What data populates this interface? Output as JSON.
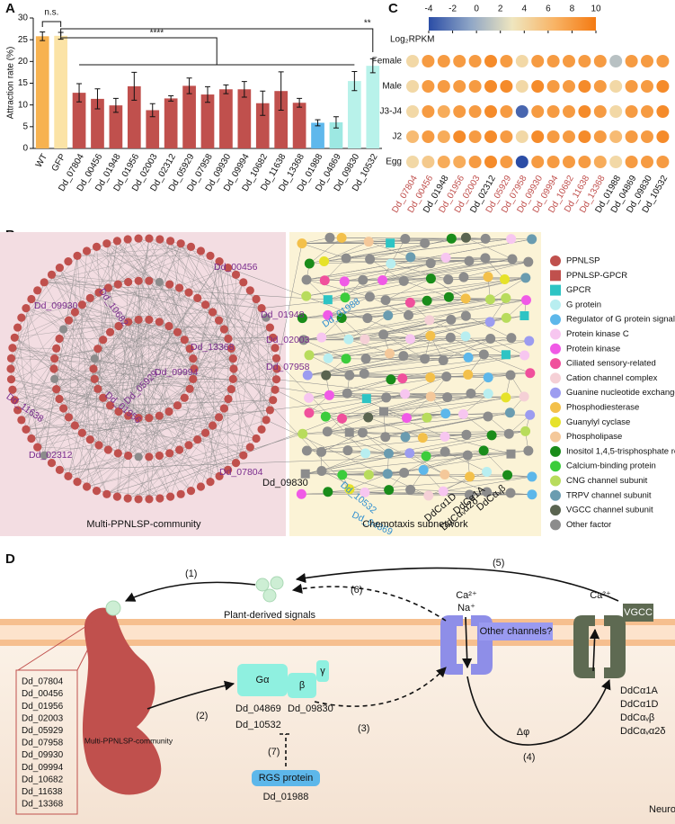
{
  "panel_labels": [
    "A",
    "B",
    "C",
    "D"
  ],
  "chart_data": [
    {
      "type": "bar",
      "y_label": "Attraction rate (%)",
      "categories": [
        "WT",
        "GFP",
        "Dd_07804",
        "Dd_00456",
        "Dd_01948",
        "Dd_01956",
        "Dd_02003",
        "Dd_02312",
        "Dd_05929",
        "Dd_07958",
        "Dd_09930",
        "Dd_09994",
        "Dd_10682",
        "Dd_11638",
        "Dd_13368",
        "Dd_01988",
        "Dd_04869",
        "Dd_09830",
        "Dd_10532"
      ],
      "values": [
        25.8,
        25.9,
        12.8,
        11.4,
        9.9,
        14.3,
        8.8,
        11.5,
        14.4,
        12.4,
        13.6,
        13.6,
        10.4,
        13.2,
        10.5,
        5.9,
        6.0,
        15.5,
        19.0
      ],
      "errors": [
        1.0,
        0.8,
        2.1,
        2.3,
        1.6,
        3.2,
        1.5,
        0.6,
        1.8,
        1.8,
        1.0,
        1.8,
        2.8,
        4.4,
        1.0,
        0.7,
        1.3,
        2.2,
        1.6
      ],
      "colors": [
        "#f7b250",
        "#fbe3a6",
        "#c0504d",
        "#c0504d",
        "#c0504d",
        "#c0504d",
        "#c0504d",
        "#c0504d",
        "#c0504d",
        "#c0504d",
        "#c0504d",
        "#c0504d",
        "#c0504d",
        "#c0504d",
        "#c0504d",
        "#5fb8ec",
        "#9de8e2",
        "#b8f2ea",
        "#b8f2ea"
      ],
      "ylim": [
        0,
        30
      ],
      "yticks": [
        0,
        5,
        10,
        15,
        20,
        25,
        30
      ],
      "annotations": [
        "n.s.",
        "****",
        "**"
      ]
    },
    {
      "type": "dot-heatmap",
      "colorbar_label": "Log₂RPKM",
      "clim": [
        -4,
        10
      ],
      "cticks": [
        -4,
        -2,
        0,
        2,
        4,
        6,
        8,
        10
      ],
      "colormap": [
        "#2b4da6",
        "#8fa6c6",
        "#efe6bf",
        "#f8b466",
        "#f47a12"
      ],
      "rows": [
        "Female",
        "Male",
        "J3-J4",
        "J2",
        "Egg"
      ],
      "columns": [
        "Dd_07804",
        "Dd_00456",
        "Dd_01948",
        "Dd_01956",
        "Dd_02003",
        "Dd_02312",
        "Dd_05929",
        "Dd_07958",
        "Dd_09930",
        "Dd_09994",
        "Dd_10682",
        "Dd_11638",
        "Dd_13368",
        "Dd_01988",
        "Dd_04869",
        "Dd_09830",
        "Dd_10532"
      ],
      "column_label_colors": [
        "#c0504d",
        "#c0504d",
        "#111111",
        "#c0504d",
        "#c0504d",
        "#111111",
        "#c0504d",
        "#c0504d",
        "#c0504d",
        "#c0504d",
        "#c0504d",
        "#c0504d",
        "#c0504d",
        "#111111",
        "#111111",
        "#111111",
        "#111111"
      ],
      "values": [
        [
          4,
          8,
          8,
          8,
          8,
          9,
          8,
          4,
          8,
          8,
          8,
          8,
          8,
          1,
          8,
          8,
          8
        ],
        [
          4,
          8,
          8,
          8,
          8,
          9,
          9,
          4,
          9,
          8,
          8,
          9,
          8,
          4,
          8,
          8,
          9
        ],
        [
          4,
          8,
          7,
          8,
          8,
          9,
          8,
          -3,
          8,
          8,
          8,
          9,
          8,
          4,
          8,
          8,
          9
        ],
        [
          6,
          8,
          7,
          9,
          8,
          9,
          8,
          4,
          9,
          8,
          8,
          9,
          8,
          6,
          8,
          8,
          9
        ],
        [
          4,
          5,
          7,
          7,
          8,
          9,
          8,
          -4,
          8,
          8,
          8,
          8,
          7,
          4,
          8,
          8,
          8
        ]
      ]
    }
  ],
  "network": {
    "community_label": "Multi-PPNLSP-community",
    "subnetwork_label": "Chemotaxis subnetwork",
    "node_labels": [
      "Dd_10682",
      "Dd_00456",
      "Dd_09930",
      "Dd_01948",
      "Dd_13368",
      "Dd_02003",
      "Dd_07958",
      "Dd_09994",
      "Dd_11638",
      "Dd_05929",
      "Dd_01956",
      "Dd_02312",
      "Dd_07804",
      "Dd_01988",
      "Dd_09830",
      "Dd_10532",
      "Dd_04869",
      "DdCα1D",
      "DdCα1A",
      "DdCαᵥα2δ",
      "DdCαᵥβ"
    ],
    "legend": [
      {
        "name": "PPNLSP",
        "color": "#c0504d",
        "shape": "circle"
      },
      {
        "name": "PPNLSP-GPCR",
        "color": "#c0504d",
        "shape": "square"
      },
      {
        "name": "GPCR",
        "color": "#2ec4c4",
        "shape": "square"
      },
      {
        "name": "G protein",
        "color": "#b8eef0",
        "shape": "circle"
      },
      {
        "name": "Regulator of G protein signaling",
        "color": "#5db7ea",
        "shape": "circle"
      },
      {
        "name": "Protein kinase C",
        "color": "#f7c6f0",
        "shape": "circle"
      },
      {
        "name": "Protein kinase",
        "color": "#f05ae6",
        "shape": "circle"
      },
      {
        "name": "Ciliated sensory-related",
        "color": "#f0509c",
        "shape": "circle"
      },
      {
        "name": "Cation channel complex",
        "color": "#f5d0d6",
        "shape": "circle"
      },
      {
        "name": "Guanine nucleotide exchange factor",
        "color": "#9c9cf0",
        "shape": "circle"
      },
      {
        "name": "Phosphodiesterase",
        "color": "#f3c04a",
        "shape": "circle"
      },
      {
        "name": "Guanylyl cyclase",
        "color": "#e6e22a",
        "shape": "circle"
      },
      {
        "name": "Phospholipase",
        "color": "#f4c89a",
        "shape": "circle"
      },
      {
        "name": "Inositol 1,4,5-trisphosphate receptor",
        "color": "#1a8c1a",
        "shape": "circle"
      },
      {
        "name": "Calcium-binding protein",
        "color": "#3ccc3c",
        "shape": "circle"
      },
      {
        "name": "CNG channel subunit",
        "color": "#b8dc5c",
        "shape": "circle"
      },
      {
        "name": "TRPV channel subunit",
        "color": "#6a9cb0",
        "shape": "circle"
      },
      {
        "name": "VGCC channel subunit",
        "color": "#5a6450",
        "shape": "circle"
      },
      {
        "name": "Other factor",
        "color": "#8c8c8c",
        "shape": "circle"
      }
    ]
  },
  "diagram": {
    "plant_signals": "Plant-derived signals",
    "steps": [
      "(1)",
      "(2)",
      "(3)",
      "(4)",
      "(5)",
      "(6)",
      "(7)"
    ],
    "community": "Multi-PPNLSP-community",
    "genes": [
      "Dd_07804",
      "Dd_00456",
      "Dd_01956",
      "Dd_02003",
      "Dd_05929",
      "Dd_07958",
      "Dd_09930",
      "Dd_09994",
      "Dd_10682",
      "Dd_11638",
      "Dd_13368"
    ],
    "g_alpha": "Gα",
    "g_beta": "β",
    "g_gamma": "γ",
    "g_proteins": [
      "Dd_04869",
      "Dd_10532",
      "Dd_09830"
    ],
    "rgs": "RGS protein",
    "rgs_gene": "Dd_01988",
    "channel_ions": [
      "Ca²⁺",
      "Na⁺"
    ],
    "other_channels": "Other channels?",
    "vgcc_ion": "Ca²⁺",
    "vgcc": "VGCC",
    "vgcc_genes": [
      "DdCα1A",
      "DdCα1D",
      "DdCαᵥβ",
      "DdCαᵥα2δ"
    ],
    "potential": "Δφ",
    "cell": "Neuron"
  }
}
